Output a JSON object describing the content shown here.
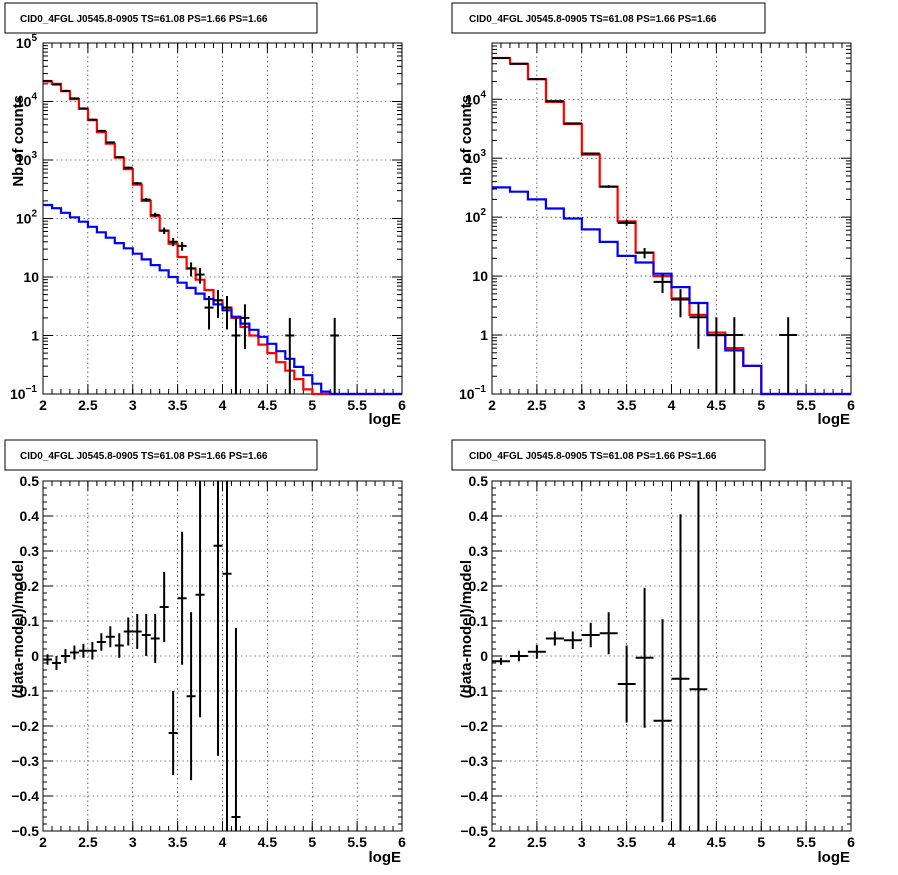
{
  "colors": {
    "data": "#000000",
    "total_model": "#ff0000",
    "source_model": "#0000ff"
  },
  "chart_data": [
    {
      "type": "line",
      "panel": "top-left",
      "title": "CID0_4FGL J0545.8-0905 TS=61.08 PS=1.66 PS=1.66",
      "xlabel": "logE",
      "ylabel": "Nb of counts",
      "xlim": [
        2,
        6
      ],
      "ylim": [
        0.1,
        100000
      ],
      "yscale": "log",
      "grid": true,
      "xticks": [
        "2",
        "2.5",
        "3",
        "3.5",
        "4",
        "4.5",
        "5",
        "5.5",
        "6"
      ],
      "yticks": [
        {
          "value": 0.1,
          "label": "10",
          "exp": "−1"
        },
        {
          "value": 1,
          "label": "1",
          "exp": ""
        },
        {
          "value": 10,
          "label": "10",
          "exp": ""
        },
        {
          "value": 100,
          "label": "10",
          "exp": "2"
        },
        {
          "value": 1000,
          "label": "10",
          "exp": "3"
        },
        {
          "value": 10000,
          "label": "10",
          "exp": "4"
        },
        {
          "value": 100000,
          "label": "10",
          "exp": "5"
        }
      ],
      "bin_edges": [
        2.0,
        2.1,
        2.2,
        2.3,
        2.4,
        2.5,
        2.6,
        2.7,
        2.8,
        2.9,
        3.0,
        3.1,
        3.2,
        3.3,
        3.4,
        3.5,
        3.6,
        3.7,
        3.8,
        3.9,
        4.0,
        4.1,
        4.2,
        4.3,
        4.4,
        4.5,
        4.6,
        4.7,
        4.8,
        4.9,
        5.0,
        5.1,
        5.2,
        5.3,
        5.4,
        5.5,
        5.6,
        5.7,
        5.8,
        5.9,
        6.0
      ],
      "series": [
        {
          "key": "total_model",
          "style": "hist",
          "values": [
            22000,
            20000,
            15000,
            11000,
            7500,
            4800,
            3000,
            1900,
            1100,
            700,
            380,
            200,
            110,
            62,
            37,
            22,
            14,
            9,
            6,
            4,
            3,
            2,
            1.4,
            1.0,
            0.7,
            0.5,
            0.35,
            0.25,
            0.18,
            0.12,
            0.1,
            0.1,
            0.1,
            0.1,
            0.1,
            0.1,
            0.1,
            0.1,
            0.1,
            0.1
          ]
        },
        {
          "key": "source_model",
          "style": "hist",
          "values": [
            170,
            150,
            125,
            105,
            88,
            72,
            58,
            47,
            38,
            31,
            25,
            20,
            16,
            13,
            10,
            8,
            6.5,
            5.2,
            4.2,
            3.4,
            2.7,
            2.1,
            1.6,
            1.25,
            0.95,
            0.72,
            0.54,
            0.4,
            0.29,
            0.21,
            0.15,
            0.11,
            0.1,
            0.1,
            0.1,
            0.1,
            0.1,
            0.1,
            0.1,
            0.1
          ]
        },
        {
          "key": "data",
          "style": "errorbar",
          "points": [
            {
              "x": 2.05,
              "y": 22500
            },
            {
              "x": 2.15,
              "y": 19500
            },
            {
              "x": 2.25,
              "y": 15200
            },
            {
              "x": 2.35,
              "y": 11300
            },
            {
              "x": 2.45,
              "y": 7600
            },
            {
              "x": 2.55,
              "y": 4900
            },
            {
              "x": 2.65,
              "y": 3150
            },
            {
              "x": 2.75,
              "y": 2000
            },
            {
              "x": 2.85,
              "y": 1120
            },
            {
              "x": 2.95,
              "y": 740
            },
            {
              "x": 3.05,
              "y": 400
            },
            {
              "x": 3.15,
              "y": 210
            },
            {
              "x": 3.25,
              "y": 115
            },
            {
              "x": 3.35,
              "y": 62
            },
            {
              "x": 3.45,
              "y": 40
            },
            {
              "x": 3.55,
              "y": 34
            },
            {
              "x": 3.65,
              "y": 14
            },
            {
              "x": 3.75,
              "y": 11
            },
            {
              "x": 3.85,
              "y": 3
            },
            {
              "x": 3.95,
              "y": 4
            },
            {
              "x": 4.05,
              "y": 3
            },
            {
              "x": 4.15,
              "y": 1
            },
            {
              "x": 4.25,
              "y": 2
            },
            {
              "x": 4.75,
              "y": 1
            },
            {
              "x": 5.25,
              "y": 1
            }
          ]
        }
      ]
    },
    {
      "type": "line",
      "panel": "top-right",
      "title": "CID0_4FGL J0545.8-0905 TS=61.08 PS=1.66 PS=1.66",
      "xlabel": "logE",
      "ylabel": "nb of counts",
      "xlim": [
        2,
        6
      ],
      "ylim": [
        0.1,
        90000
      ],
      "yscale": "log",
      "grid": true,
      "xticks": [
        "2",
        "2.5",
        "3",
        "3.5",
        "4",
        "4.5",
        "5",
        "5.5",
        "6"
      ],
      "yticks": [
        {
          "value": 0.1,
          "label": "10",
          "exp": "−1"
        },
        {
          "value": 1,
          "label": "1",
          "exp": ""
        },
        {
          "value": 10,
          "label": "10",
          "exp": ""
        },
        {
          "value": 100,
          "label": "10",
          "exp": "2"
        },
        {
          "value": 1000,
          "label": "10",
          "exp": "3"
        },
        {
          "value": 10000,
          "label": "10",
          "exp": "4"
        }
      ],
      "bin_edges": [
        2.0,
        2.2,
        2.4,
        2.6,
        2.8,
        3.0,
        3.2,
        3.4,
        3.6,
        3.8,
        4.0,
        4.2,
        4.4,
        4.6,
        4.8,
        5.0,
        5.2,
        5.4,
        5.6,
        5.8,
        6.0
      ],
      "series": [
        {
          "key": "total_model",
          "style": "hist",
          "values": [
            50000,
            40000,
            22000,
            9000,
            3800,
            1150,
            330,
            85,
            25,
            10,
            4.2,
            2.2,
            1.1,
            0.6,
            0.3,
            0.1,
            0.1,
            0.1,
            0.1,
            0.1
          ]
        },
        {
          "key": "source_model",
          "style": "hist",
          "values": [
            320,
            270,
            200,
            140,
            95,
            62,
            38,
            22,
            17,
            11,
            6.5,
            3.5,
            1.0,
            0.55,
            0.3,
            0.1,
            0.1,
            0.1,
            0.1,
            0.1
          ]
        },
        {
          "key": "data",
          "style": "errorbar",
          "points": [
            {
              "x": 2.1,
              "y": 50000
            },
            {
              "x": 2.3,
              "y": 40000
            },
            {
              "x": 2.5,
              "y": 22000
            },
            {
              "x": 2.7,
              "y": 9300
            },
            {
              "x": 2.9,
              "y": 3900
            },
            {
              "x": 3.1,
              "y": 1200
            },
            {
              "x": 3.3,
              "y": 330
            },
            {
              "x": 3.5,
              "y": 80
            },
            {
              "x": 3.7,
              "y": 25
            },
            {
              "x": 3.9,
              "y": 8
            },
            {
              "x": 4.1,
              "y": 4
            },
            {
              "x": 4.3,
              "y": 2
            },
            {
              "x": 4.5,
              "y": 1
            },
            {
              "x": 4.7,
              "y": 1
            },
            {
              "x": 5.3,
              "y": 1
            }
          ]
        }
      ]
    },
    {
      "type": "scatter",
      "panel": "bottom-left",
      "title": "CID0_4FGL J0545.8-0905 TS=61.08 PS=1.66 PS=1.66",
      "xlabel": "logE",
      "ylabel": "(data-model)/model",
      "xlim": [
        2,
        6
      ],
      "ylim": [
        -0.5,
        0.5
      ],
      "yscale": "linear",
      "grid": true,
      "xticks": [
        "2",
        "2.5",
        "3",
        "3.5",
        "4",
        "4.5",
        "5",
        "5.5",
        "6"
      ],
      "yticks": [
        {
          "value": -0.5,
          "label": "−0.5"
        },
        {
          "value": -0.4,
          "label": "−0.4"
        },
        {
          "value": -0.3,
          "label": "−0.3"
        },
        {
          "value": -0.2,
          "label": "−0.2"
        },
        {
          "value": -0.1,
          "label": "−0.1"
        },
        {
          "value": 0,
          "label": "0"
        },
        {
          "value": 0.1,
          "label": "0.1"
        },
        {
          "value": 0.2,
          "label": "0.2"
        },
        {
          "value": 0.3,
          "label": "0.3"
        },
        {
          "value": 0.4,
          "label": "0.4"
        },
        {
          "value": 0.5,
          "label": "0.5"
        }
      ],
      "series": [
        {
          "key": "data",
          "style": "errorbar",
          "xerr": 0.05,
          "points": [
            {
              "x": 2.05,
              "y": -0.01,
              "yerr": 0.015
            },
            {
              "x": 2.15,
              "y": -0.02,
              "yerr": 0.02
            },
            {
              "x": 2.25,
              "y": 0.0,
              "yerr": 0.02
            },
            {
              "x": 2.35,
              "y": 0.01,
              "yerr": 0.02
            },
            {
              "x": 2.45,
              "y": 0.015,
              "yerr": 0.02
            },
            {
              "x": 2.55,
              "y": 0.015,
              "yerr": 0.025
            },
            {
              "x": 2.65,
              "y": 0.04,
              "yerr": 0.025
            },
            {
              "x": 2.75,
              "y": 0.055,
              "yerr": 0.03
            },
            {
              "x": 2.85,
              "y": 0.03,
              "yerr": 0.035
            },
            {
              "x": 2.95,
              "y": 0.07,
              "yerr": 0.04
            },
            {
              "x": 3.05,
              "y": 0.07,
              "yerr": 0.05
            },
            {
              "x": 3.15,
              "y": 0.06,
              "yerr": 0.06
            },
            {
              "x": 3.25,
              "y": 0.05,
              "yerr": 0.07
            },
            {
              "x": 3.35,
              "y": 0.14,
              "yerr": 0.1
            },
            {
              "x": 3.45,
              "y": -0.22,
              "yerr": 0.12
            },
            {
              "x": 3.55,
              "y": 0.165,
              "yerr": 0.19
            },
            {
              "x": 3.65,
              "y": -0.115,
              "yerr": 0.24
            },
            {
              "x": 3.75,
              "y": 0.175,
              "yerr": 0.35
            },
            {
              "x": 3.95,
              "y": 0.315,
              "yerr": 0.6
            },
            {
              "x": 4.05,
              "y": 0.235,
              "yerr": 0.75
            },
            {
              "x": 4.15,
              "y": -0.46,
              "yerr": 0.54
            }
          ]
        }
      ]
    },
    {
      "type": "scatter",
      "panel": "bottom-right",
      "title": "CID0_4FGL J0545.8-0905 TS=61.08 PS=1.66 PS=1.66",
      "xlabel": "logE",
      "ylabel": "(data-model)/model",
      "xlim": [
        2,
        6
      ],
      "ylim": [
        -0.5,
        0.5
      ],
      "yscale": "linear",
      "grid": true,
      "xticks": [
        "2",
        "2.5",
        "3",
        "3.5",
        "4",
        "4.5",
        "5",
        "5.5",
        "6"
      ],
      "yticks": [
        {
          "value": -0.5,
          "label": "−0.5"
        },
        {
          "value": -0.4,
          "label": "−0.4"
        },
        {
          "value": -0.3,
          "label": "−0.3"
        },
        {
          "value": -0.2,
          "label": "−0.2"
        },
        {
          "value": -0.1,
          "label": "−0.1"
        },
        {
          "value": 0,
          "label": "0"
        },
        {
          "value": 0.1,
          "label": "0.1"
        },
        {
          "value": 0.2,
          "label": "0.2"
        },
        {
          "value": 0.3,
          "label": "0.3"
        },
        {
          "value": 0.4,
          "label": "0.4"
        },
        {
          "value": 0.5,
          "label": "0.5"
        }
      ],
      "series": [
        {
          "key": "data",
          "style": "errorbar",
          "xerr": 0.1,
          "points": [
            {
              "x": 2.1,
              "y": -0.015,
              "yerr": 0.01
            },
            {
              "x": 2.3,
              "y": 0.0,
              "yerr": 0.015
            },
            {
              "x": 2.5,
              "y": 0.012,
              "yerr": 0.02
            },
            {
              "x": 2.7,
              "y": 0.05,
              "yerr": 0.02
            },
            {
              "x": 2.9,
              "y": 0.045,
              "yerr": 0.025
            },
            {
              "x": 3.1,
              "y": 0.06,
              "yerr": 0.035
            },
            {
              "x": 3.3,
              "y": 0.065,
              "yerr": 0.06
            },
            {
              "x": 3.5,
              "y": -0.08,
              "yerr": 0.11
            },
            {
              "x": 3.7,
              "y": -0.005,
              "yerr": 0.2
            },
            {
              "x": 3.9,
              "y": -0.185,
              "yerr": 0.29
            },
            {
              "x": 4.1,
              "y": -0.065,
              "yerr": 0.47
            },
            {
              "x": 4.3,
              "y": -0.095,
              "yerr": 0.6
            }
          ]
        }
      ]
    }
  ]
}
